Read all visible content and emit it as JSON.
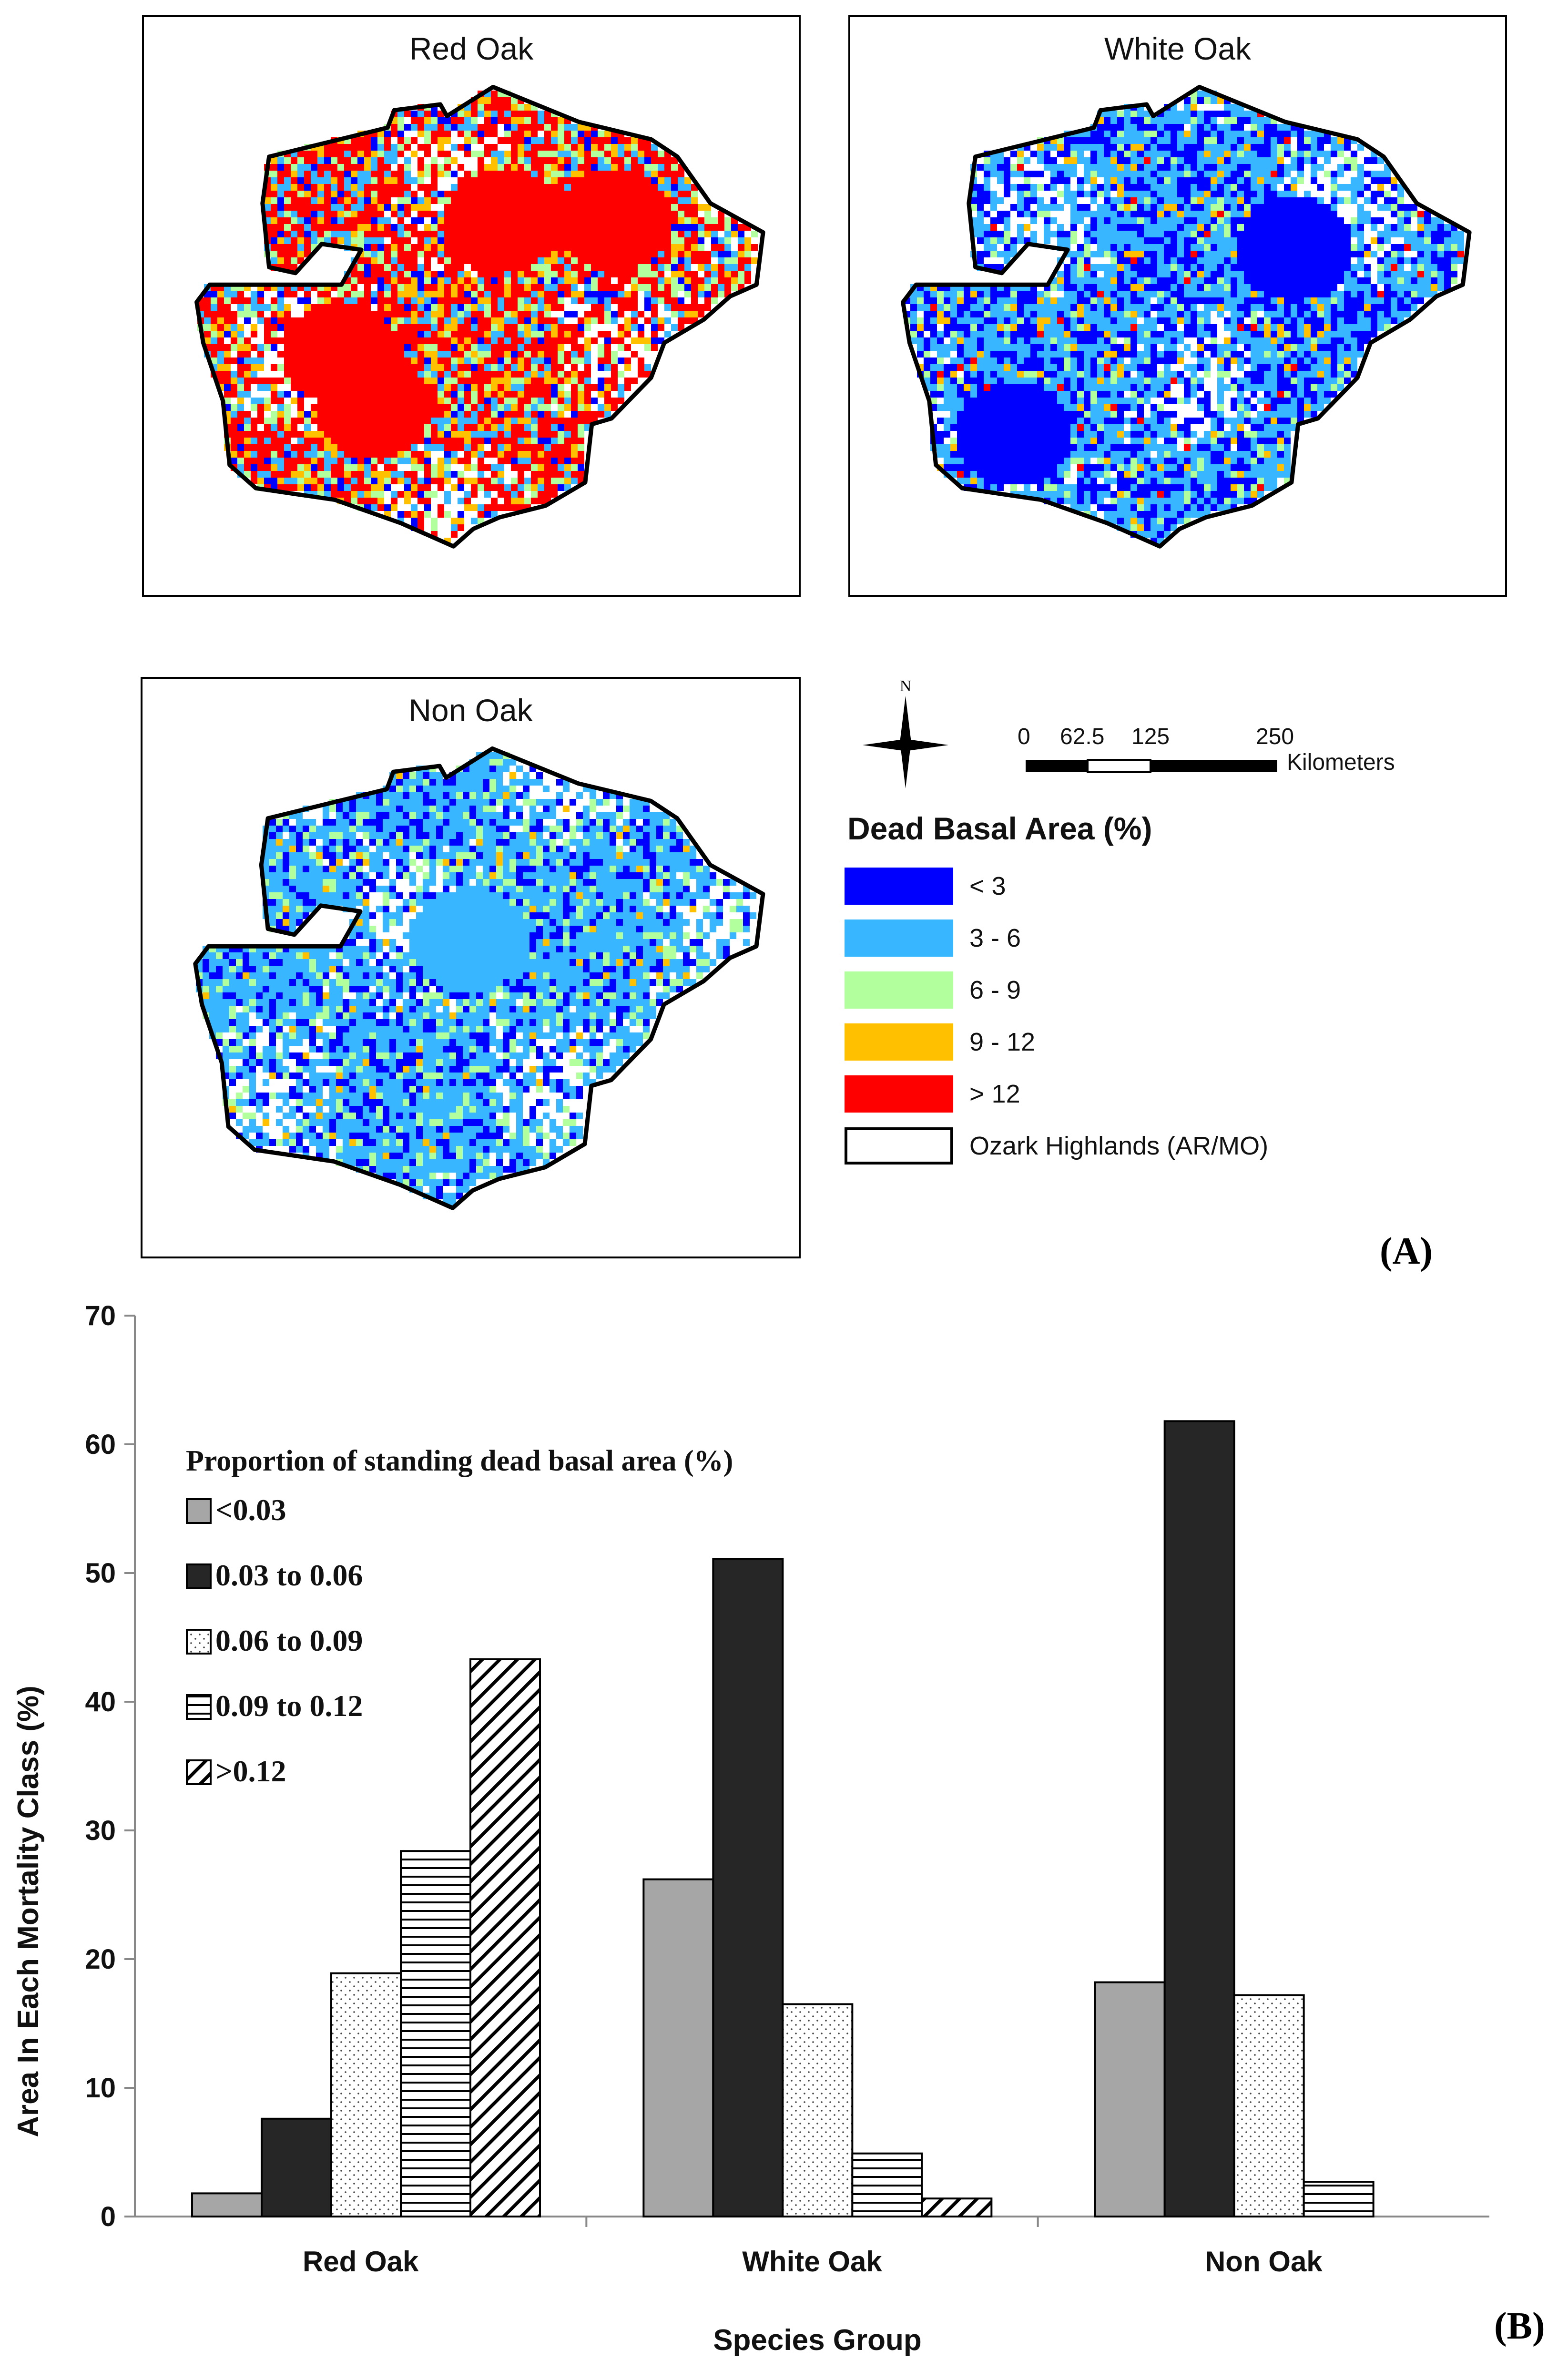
{
  "panel_a": {
    "label": "(A)",
    "maps": [
      {
        "title": "Red Oak"
      },
      {
        "title": "White Oak"
      },
      {
        "title": "Non Oak"
      }
    ],
    "north_label": "N",
    "scale": {
      "ticks": [
        "0",
        "62.5",
        "125",
        "250"
      ],
      "unit": "Kilometers"
    },
    "legend": {
      "title": "Dead Basal Area (%)",
      "items": [
        {
          "label": "< 3",
          "color": "#0000ff"
        },
        {
          "label": "3 - 6",
          "color": "#38b6ff"
        },
        {
          "label": "6 - 9",
          "color": "#b2ff9e"
        },
        {
          "label": "9 - 12",
          "color": "#ffc000"
        },
        {
          "label": "> 12",
          "color": "#ff0000"
        },
        {
          "label": "Ozark Highlands (AR/MO)",
          "color": "#ffffff"
        }
      ]
    }
  },
  "panel_b": {
    "label": "(B)"
  },
  "chart_data": {
    "type": "bar",
    "title": "",
    "xlabel": "Species Group",
    "ylabel": "Area In Each Mortality Class (%)",
    "ylim": [
      0,
      70
    ],
    "yticks": [
      0,
      10,
      20,
      30,
      40,
      50,
      60,
      70
    ],
    "categories": [
      "Red Oak",
      "White Oak",
      "Non Oak"
    ],
    "legend_title": "Proportion of standing dead basal area (%)",
    "series": [
      {
        "name": "<0.03",
        "values": [
          1.8,
          26.2,
          18.2
        ],
        "pattern": "gray"
      },
      {
        "name": "0.03 to 0.06",
        "values": [
          7.6,
          51.1,
          61.8
        ],
        "pattern": "black"
      },
      {
        "name": "0.06 to 0.09",
        "values": [
          18.9,
          16.5,
          17.2
        ],
        "pattern": "dots"
      },
      {
        "name": "0.09 to 0.12",
        "values": [
          28.4,
          4.9,
          2.7
        ],
        "pattern": "hlines"
      },
      {
        "name": ">0.12",
        "values": [
          43.3,
          1.4,
          0
        ],
        "pattern": "diag"
      }
    ]
  }
}
